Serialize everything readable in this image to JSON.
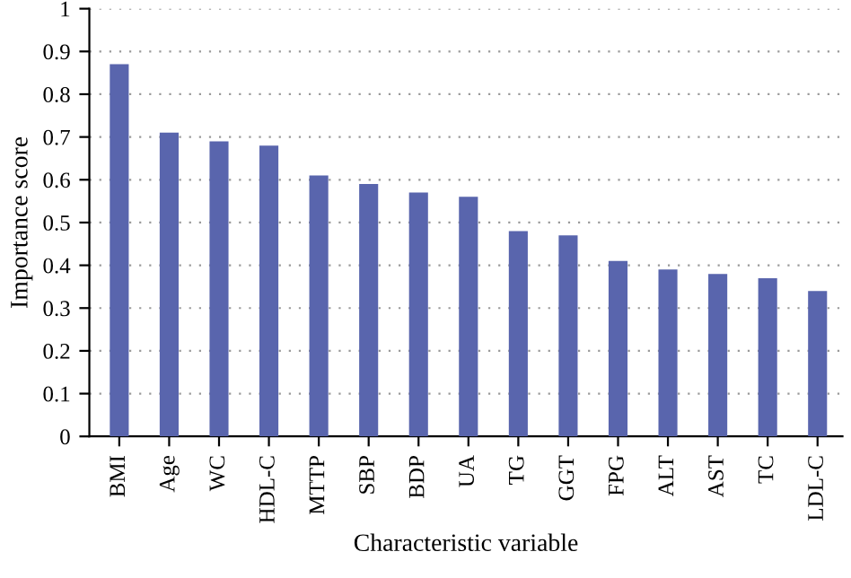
{
  "chart_data": {
    "type": "bar",
    "xlabel": "Characteristic variable",
    "ylabel": "Importance score",
    "categories": [
      "BMI",
      "Age",
      "WC",
      "HDL-C",
      "MTTP",
      "SBP",
      "BDP",
      "UA",
      "TG",
      "GGT",
      "FPG",
      "ALT",
      "AST",
      "TC",
      "LDL-C"
    ],
    "values": [
      0.87,
      0.71,
      0.69,
      0.68,
      0.61,
      0.59,
      0.57,
      0.56,
      0.48,
      0.47,
      0.41,
      0.39,
      0.38,
      0.37,
      0.34
    ],
    "color": "#5965ad",
    "ylim": [
      0,
      1
    ],
    "yticks": [
      0,
      0.1,
      0.2,
      0.3,
      0.4,
      0.5,
      0.6,
      0.7,
      0.8,
      0.9,
      1
    ],
    "grid": "y"
  }
}
